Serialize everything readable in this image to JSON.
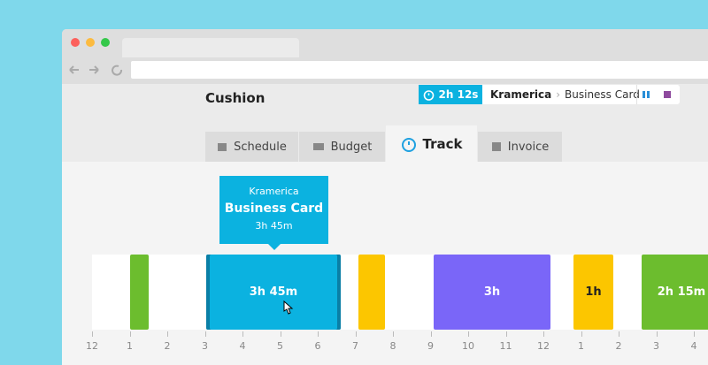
{
  "app": {
    "title": "Cushion"
  },
  "timer": {
    "elapsed": "2h 12s",
    "client": "Kramerica",
    "project": "Business Card"
  },
  "tabs": [
    "Schedule",
    "Budget",
    "Track",
    "Invoice"
  ],
  "tooltip": {
    "client": "Kramerica",
    "project": "Business Card",
    "duration": "3h 45m"
  },
  "timeline": {
    "entries": [
      null,
      "3h 45m",
      null,
      "3h",
      "1h",
      "2h 15m"
    ],
    "ticks": [
      "12",
      "1",
      "2",
      "3",
      "4",
      "5",
      "6",
      "7",
      "8",
      "9",
      "10",
      "11",
      "12",
      "1",
      "2",
      "3",
      "4"
    ]
  }
}
